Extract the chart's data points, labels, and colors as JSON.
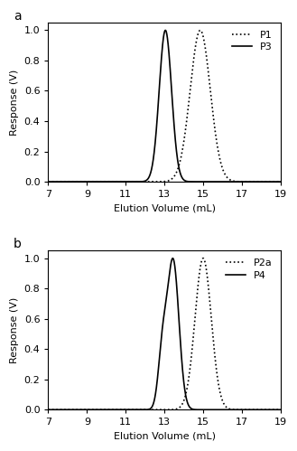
{
  "panel_a": {
    "label": "a",
    "P1": {
      "name": "P1",
      "peak": 14.85,
      "sigma": 0.52,
      "amplitude": 1.0
    },
    "P3": {
      "name": "P3",
      "peak": 13.05,
      "sigma": 0.32,
      "amplitude": 1.0
    },
    "xlim": [
      7,
      19
    ],
    "ylim": [
      0,
      1.05
    ],
    "xticks": [
      7,
      9,
      11,
      13,
      15,
      17,
      19
    ],
    "yticks": [
      0,
      0.2,
      0.4,
      0.6,
      0.8,
      1.0
    ],
    "xlabel": "Elution Volume (mL)",
    "ylabel": "Response (V)"
  },
  "panel_b": {
    "label": "b",
    "P2a": {
      "name": "P2a",
      "peak": 15.0,
      "sigma": 0.42,
      "amplitude": 1.0
    },
    "P4": {
      "name": "P4",
      "peak": 13.45,
      "sigma": 0.3,
      "amplitude": 1.0,
      "shoulder_peak": 12.9,
      "shoulder_sigma": 0.22,
      "shoulder_amplitude": 0.37
    },
    "xlim": [
      7,
      19
    ],
    "ylim": [
      0,
      1.05
    ],
    "xticks": [
      7,
      9,
      11,
      13,
      15,
      17,
      19
    ],
    "yticks": [
      0,
      0.2,
      0.4,
      0.6,
      0.8,
      1.0
    ],
    "xlabel": "Elution Volume (mL)",
    "ylabel": "Response (V)"
  },
  "color": "black",
  "background_color": "white",
  "fontsize": 8,
  "linewidth": 1.2,
  "dotted_linewidth": 1.2,
  "figsize": [
    3.29,
    4.99
  ],
  "dpi": 100
}
